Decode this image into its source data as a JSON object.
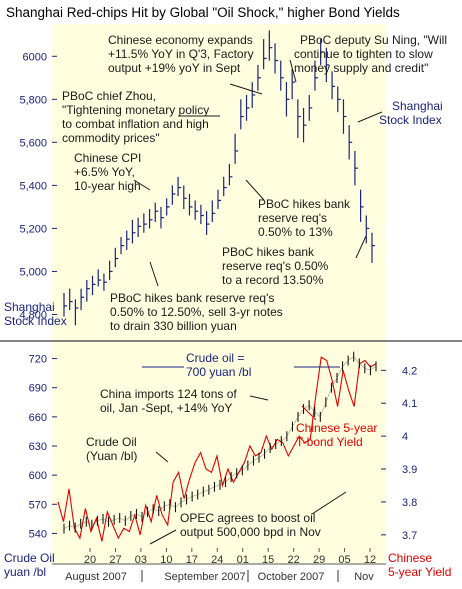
{
  "title": "Shanghai Red-chips Hit by Global \"Oil Shock,\" higher Bond Yields",
  "colors": {
    "background": "#ffffe0",
    "price_bars": "#1a237e",
    "axis_text": "#1a237e",
    "bond_line": "#e00000",
    "bond_label": "#e00000",
    "annotation_text": "#1a1a1a",
    "divider": "#5a5a5a"
  },
  "chart_data": [
    {
      "type": "ohlc",
      "name": "shanghai-index",
      "series_label": "Shanghai Stock Index",
      "corner_label_line1": "Shanghai",
      "corner_label_line2": "Stock Index",
      "y_ticks": [
        4800,
        5000,
        5200,
        5400,
        5600,
        5800,
        6000
      ],
      "y_tick_labels": [
        "4,800",
        "5,000",
        "5,200",
        "5,400",
        "5,600",
        "5,800",
        "6000"
      ],
      "ylim": [
        4700,
        6150
      ],
      "bars": [
        [
          4840,
          4900,
          4790
        ],
        [
          4860,
          4920,
          4820
        ],
        [
          4830,
          4870,
          4750
        ],
        [
          4880,
          4920,
          4820
        ],
        [
          4920,
          4960,
          4860
        ],
        [
          4940,
          4980,
          4890
        ],
        [
          4960,
          5010,
          4930
        ],
        [
          4950,
          4990,
          4910
        ],
        [
          5000,
          5050,
          4960
        ],
        [
          5060,
          5110,
          5020
        ],
        [
          5120,
          5160,
          5080
        ],
        [
          5150,
          5190,
          5100
        ],
        [
          5180,
          5240,
          5130
        ],
        [
          5210,
          5250,
          5160
        ],
        [
          5220,
          5270,
          5180
        ],
        [
          5240,
          5290,
          5200
        ],
        [
          5280,
          5320,
          5230
        ],
        [
          5250,
          5300,
          5200
        ],
        [
          5300,
          5340,
          5260
        ],
        [
          5360,
          5400,
          5310
        ],
        [
          5390,
          5440,
          5350
        ],
        [
          5340,
          5400,
          5290
        ],
        [
          5300,
          5360,
          5260
        ],
        [
          5280,
          5330,
          5240
        ],
        [
          5260,
          5310,
          5220
        ],
        [
          5220,
          5280,
          5170
        ],
        [
          5270,
          5330,
          5230
        ],
        [
          5330,
          5380,
          5290
        ],
        [
          5390,
          5440,
          5350
        ],
        [
          5440,
          5500,
          5400
        ],
        [
          5560,
          5640,
          5500
        ],
        [
          5720,
          5800,
          5660
        ],
        [
          5760,
          5820,
          5700
        ],
        [
          5820,
          5880,
          5760
        ],
        [
          5900,
          5960,
          5840
        ],
        [
          5990,
          6080,
          5940
        ],
        [
          6040,
          6120,
          5980
        ],
        [
          5980,
          6060,
          5920
        ],
        [
          5900,
          5980,
          5840
        ],
        [
          5800,
          5880,
          5720
        ],
        [
          5880,
          5940,
          5800
        ],
        [
          5720,
          5800,
          5620
        ],
        [
          5680,
          5760,
          5600
        ],
        [
          5760,
          5820,
          5700
        ],
        [
          5900,
          5980,
          5840
        ],
        [
          6020,
          6080,
          5960
        ],
        [
          5960,
          6040,
          5880
        ],
        [
          5860,
          5930,
          5800
        ],
        [
          5800,
          5860,
          5740
        ],
        [
          5720,
          5800,
          5640
        ],
        [
          5600,
          5680,
          5520
        ],
        [
          5480,
          5560,
          5400
        ],
        [
          5300,
          5380,
          5230
        ],
        [
          5200,
          5260,
          5130
        ],
        [
          5120,
          5180,
          5040
        ]
      ],
      "annotations": [
        {
          "lines": [
            "Chinese economy expands",
            "+11.5% YoY in Q'3, Factory",
            "output +19% yoY in Sept"
          ]
        },
        {
          "lines": [
            "PBoC deputy Su Ning, \"Will",
            "continue to tighten to slow",
            "money supply and credit\""
          ]
        },
        {
          "lines": [
            "PBoC chief Zhou,",
            "\"Tightening monetary policy",
            "to combat inflation and high",
            "commodity prices\""
          ]
        },
        {
          "lines": [
            "Chinese CPI",
            "+6.5% YoY,",
            "10-year high"
          ]
        },
        {
          "lines": [
            "PBoC hikes bank",
            "reserve req's",
            "0.50% to 13%"
          ]
        },
        {
          "lines": [
            "PBoC hikes bank",
            "reserve req's 0.50%",
            "to a record 13.50%"
          ]
        },
        {
          "lines": [
            "PBoC hikes bank reserve req's",
            "0.50% to 12.50%, sell 3-yr notes",
            "to drain 330 billion yuan"
          ]
        }
      ]
    },
    {
      "type": "line",
      "name": "crude-oil-vs-bond-yield",
      "series": [
        {
          "name": "Crude Oil (Yuan /bl)",
          "axis": "left",
          "y_ticks": [
            540,
            570,
            600,
            630,
            660,
            690,
            720
          ],
          "ylim": [
            525,
            735
          ],
          "values": [
            545,
            548,
            546,
            550,
            552,
            549,
            553,
            555,
            552,
            554,
            556,
            553,
            558,
            560,
            557,
            562,
            565,
            563,
            568,
            570,
            567,
            572,
            575,
            578,
            580,
            583,
            585,
            588,
            590,
            593,
            598,
            602,
            605,
            610,
            615,
            618,
            622,
            628,
            632,
            635,
            640,
            650,
            660,
            668,
            672,
            665,
            660,
            675,
            690,
            700,
            712,
            718,
            722,
            715,
            710,
            708,
            712
          ]
        },
        {
          "name": "Chinese 5-year T-bond Yield",
          "axis": "right",
          "y_ticks": [
            3.7,
            3.8,
            3.9,
            4.0,
            4.1,
            4.2
          ],
          "y_tick_labels": [
            "3.7",
            "3.8",
            "3.9",
            "4",
            "4.1",
            "4.2"
          ],
          "ylim": [
            3.66,
            4.28
          ],
          "values": [
            3.8,
            3.74,
            3.84,
            3.72,
            3.69,
            3.78,
            3.71,
            3.75,
            3.68,
            3.77,
            3.73,
            3.69,
            3.72,
            3.71,
            3.76,
            3.7,
            3.79,
            3.74,
            3.82,
            3.76,
            3.73,
            3.86,
            3.89,
            3.81,
            3.87,
            3.92,
            3.95,
            3.9,
            3.89,
            3.94,
            3.85,
            3.9,
            3.86,
            3.89,
            3.92,
            3.97,
            3.94,
            3.95,
            4.0,
            3.96,
            3.99,
            3.98,
            3.94,
            3.97,
            4.0,
            3.98,
            3.99,
            4.12,
            4.24,
            4.23,
            4.17,
            4.09,
            4.2,
            4.14,
            4.09,
            4.22,
            4.23,
            4.21,
            4.22
          ]
        }
      ],
      "corner_left": [
        "Crude Oil",
        "yuan /bl"
      ],
      "corner_right": [
        "Chinese",
        "5-year Yield"
      ],
      "x_ticks": [
        "20",
        "27",
        "03",
        "10",
        "17",
        "24",
        "01",
        "15",
        "22",
        "29",
        "05",
        "12"
      ],
      "months": [
        "August 2007",
        "September 2007",
        "October 2007",
        "Nov"
      ],
      "annotations": [
        {
          "lines": [
            "Crude oil =",
            "700 yuan /bl"
          ]
        },
        {
          "lines": [
            "China imports 124 tons of",
            "oil, Jan -Sept, +14% YoY"
          ]
        },
        {
          "lines": [
            "Crude Oil",
            "(Yuan /bl)"
          ]
        },
        {
          "lines": [
            "Chinese 5-year",
            "T-bond Yield"
          ]
        },
        {
          "lines": [
            "OPEC agrees to boost oil",
            "output 500,000 bpd in Nov"
          ]
        }
      ]
    }
  ]
}
